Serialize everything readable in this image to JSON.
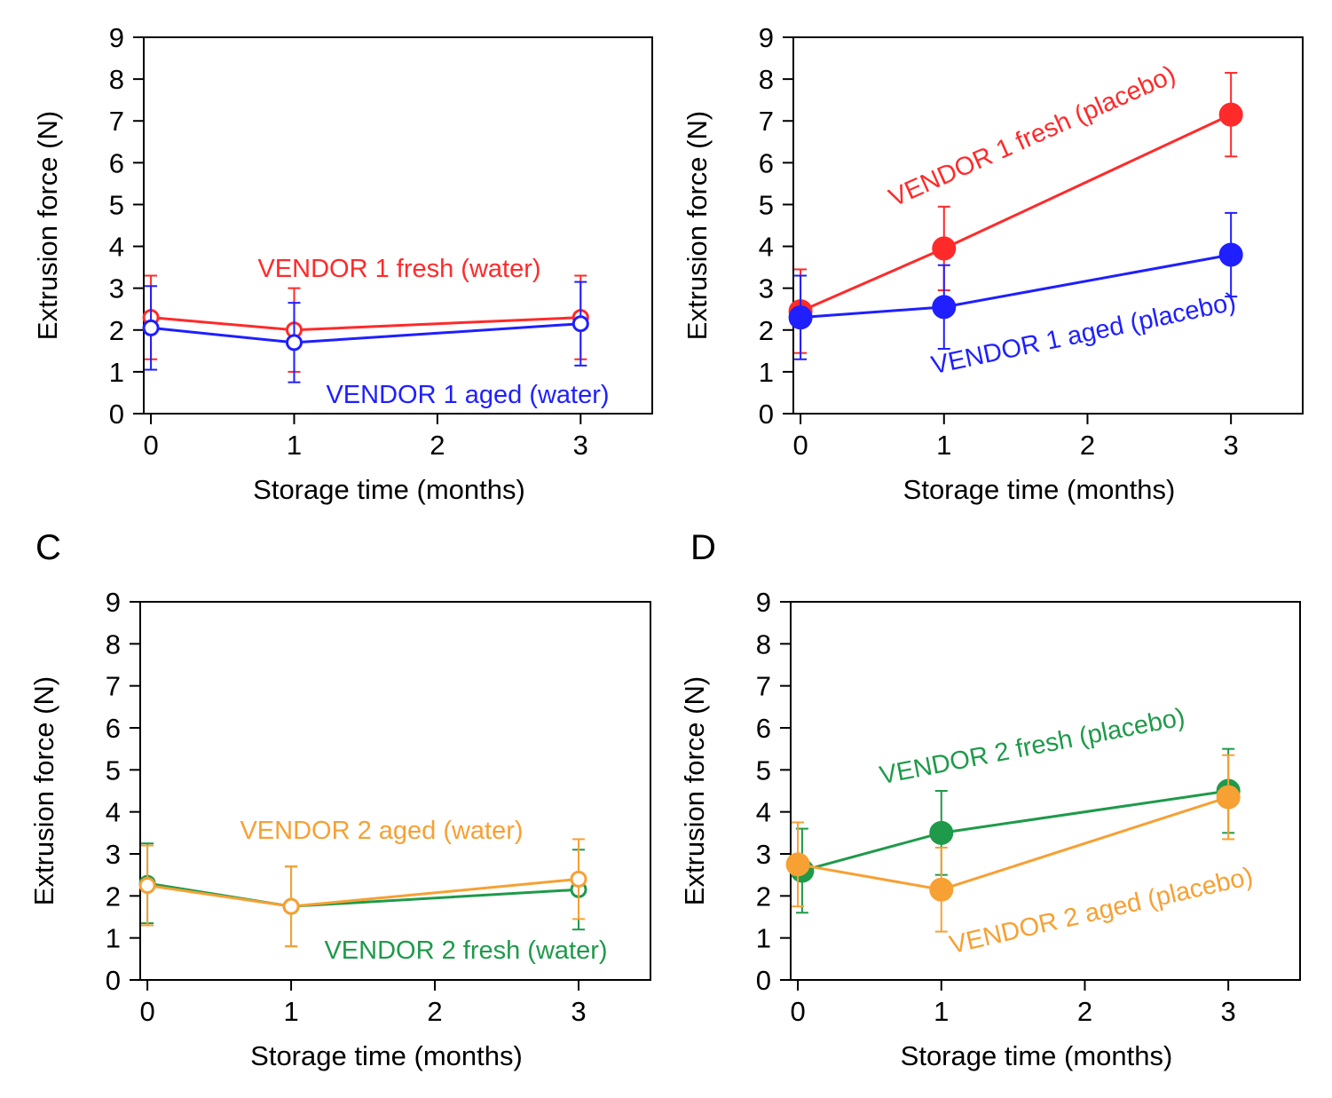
{
  "chart_data": [
    {
      "panel_label": "",
      "type": "line",
      "xlabel": "Storage time (months)",
      "ylabel": "Extrusion  force (N)",
      "xlim": [
        -0.05,
        3.5
      ],
      "ylim": [
        0,
        9
      ],
      "xticks": [
        "0",
        "1",
        "2",
        "3"
      ],
      "yticks": [
        "0",
        "1",
        "2",
        "3",
        "4",
        "5",
        "6",
        "7",
        "8",
        "9"
      ],
      "grid": false,
      "marker": "open",
      "series": [
        {
          "name": "VENDOR 1 fresh (water)",
          "color": "#ff2a2a",
          "x": [
            0,
            1,
            3
          ],
          "y": [
            2.3,
            2.0,
            2.3
          ],
          "err": [
            1.0,
            1.0,
            1.0
          ]
        },
        {
          "name": "VENDOR 1 aged (water)",
          "color": "#1f1fff",
          "x": [
            0,
            1,
            3
          ],
          "y": [
            2.05,
            1.7,
            2.15
          ],
          "err": [
            1.0,
            0.95,
            1.0
          ]
        }
      ],
      "annotations": [
        {
          "text": "VENDOR 1 fresh (water)",
          "color": "#ff2a2a"
        },
        {
          "text": "VENDOR 1 aged (water)",
          "color": "#1f1fff"
        }
      ]
    },
    {
      "panel_label": "",
      "type": "line",
      "xlabel": "Storage time (months)",
      "ylabel": "Extrusion  force (N)",
      "xlim": [
        -0.05,
        3.5
      ],
      "ylim": [
        0,
        9
      ],
      "xticks": [
        "0",
        "1",
        "2",
        "3"
      ],
      "yticks": [
        "0",
        "1",
        "2",
        "3",
        "4",
        "5",
        "6",
        "7",
        "8",
        "9"
      ],
      "grid": false,
      "marker": "filled",
      "series": [
        {
          "name": "VENDOR 1 fresh (placebo)",
          "color": "#ff2a2a",
          "x": [
            0,
            1,
            3
          ],
          "y": [
            2.45,
            3.95,
            7.15
          ],
          "err": [
            1.0,
            1.0,
            1.0
          ]
        },
        {
          "name": "VENDOR 1 aged (placebo)",
          "color": "#1f1fff",
          "x": [
            0,
            1,
            3
          ],
          "y": [
            2.3,
            2.55,
            3.8
          ],
          "err": [
            1.0,
            1.0,
            1.0
          ]
        }
      ],
      "annotations": [
        {
          "text": "VENDOR 1 fresh (placebo)",
          "color": "#ff2a2a"
        },
        {
          "text": "VENDOR 1 aged (placebo)",
          "color": "#1f1fff"
        }
      ]
    },
    {
      "panel_label": "C",
      "type": "line",
      "xlabel": "Storage time (months)",
      "ylabel": "Extrusion  force (N)",
      "xlim": [
        -0.05,
        3.5
      ],
      "ylim": [
        0,
        9
      ],
      "xticks": [
        "0",
        "1",
        "2",
        "3"
      ],
      "yticks": [
        "0",
        "1",
        "2",
        "3",
        "4",
        "5",
        "6",
        "7",
        "8",
        "9"
      ],
      "grid": false,
      "marker": "open",
      "series": [
        {
          "name": "VENDOR 2 fresh (water)",
          "color": "#1e9a4a",
          "x": [
            0,
            1,
            3
          ],
          "y": [
            2.3,
            1.75,
            2.15
          ],
          "err": [
            0.95,
            0.95,
            0.95
          ]
        },
        {
          "name": "VENDOR 2 aged (water)",
          "color": "#f7a033",
          "x": [
            0,
            1,
            3
          ],
          "y": [
            2.25,
            1.75,
            2.4
          ],
          "err": [
            0.95,
            0.95,
            0.95
          ]
        }
      ],
      "annotations": [
        {
          "text": "VENDOR 2 aged (water)",
          "color": "#f7a033"
        },
        {
          "text": "VENDOR 2 fresh (water)",
          "color": "#1e9a4a"
        }
      ]
    },
    {
      "panel_label": "D",
      "type": "line",
      "xlabel": "Storage time (months)",
      "ylabel": "Extrusion  force (N)",
      "xlim": [
        -0.05,
        3.5
      ],
      "ylim": [
        0,
        9
      ],
      "xticks": [
        "0",
        "1",
        "2",
        "3"
      ],
      "yticks": [
        "0",
        "1",
        "2",
        "3",
        "4",
        "5",
        "6",
        "7",
        "8",
        "9"
      ],
      "grid": false,
      "marker": "filled",
      "series": [
        {
          "name": "VENDOR 2 fresh (placebo)",
          "color": "#1e9a4a",
          "x": [
            0.03,
            1,
            3
          ],
          "y": [
            2.6,
            3.5,
            4.5
          ],
          "err": [
            1.0,
            1.0,
            1.0
          ]
        },
        {
          "name": "VENDOR 2 aged (placebo)",
          "color": "#f7a033",
          "x": [
            0,
            1,
            3
          ],
          "y": [
            2.75,
            2.15,
            4.35
          ],
          "err": [
            1.0,
            1.0,
            1.0
          ]
        }
      ],
      "annotations": [
        {
          "text": "VENDOR 2 fresh (placebo)",
          "color": "#1e9a4a"
        },
        {
          "text": "VENDOR 2 aged (placebo)",
          "color": "#f7a033"
        }
      ]
    }
  ]
}
